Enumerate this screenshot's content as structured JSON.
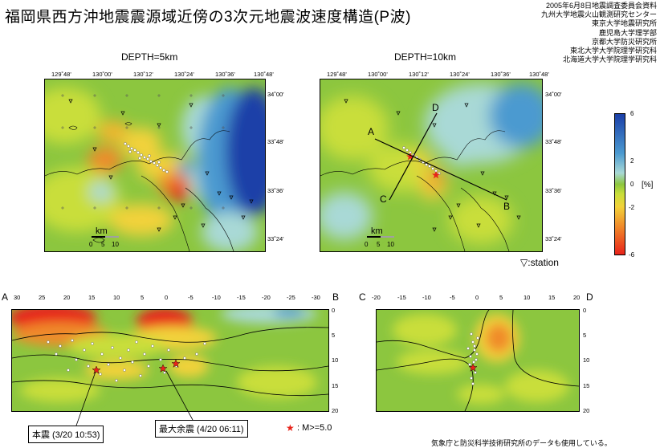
{
  "title": "福岡県西方沖地震震源域近傍の3次元地震波速度構造(P波)",
  "credits": [
    "2005年6月8日地震調査委員会資料",
    "九州大学地震火山観測研究センター",
    "東京大学地震研究所",
    "鹿児島大学理学部",
    "京都大学防災研究所",
    "東北大学大学院理学研究科",
    "北海道大学大学院理学研究科"
  ],
  "map_left": {
    "label": "DEPTH=5km"
  },
  "map_right": {
    "label": "DEPTH=10km"
  },
  "lon_ticks": [
    "129˚48'",
    "130˚00'",
    "130˚12'",
    "130˚24'",
    "130˚36'",
    "130˚48'"
  ],
  "lat_ticks": [
    "34˚00'",
    "33˚48'",
    "33˚36'",
    "33˚24'"
  ],
  "scale": {
    "unit": "km",
    "ticks": [
      "0",
      "5",
      "10"
    ]
  },
  "profile_labels": {
    "A": "A",
    "B": "B",
    "C": "C",
    "D": "D"
  },
  "station_legend": "▽:station",
  "colorbar": {
    "ticks": [
      "6",
      "2",
      "0",
      "-2",
      "-6"
    ],
    "unit": "[%]",
    "colors": [
      "#1a3fa8",
      "#4b9ad0",
      "#a9d9d6",
      "#8cc63f",
      "#f2d23a",
      "#f08a2a",
      "#e8231a"
    ]
  },
  "section_ab": {
    "left": "A",
    "right": "B",
    "x_ticks": [
      "30",
      "25",
      "20",
      "15",
      "10",
      "5",
      "0",
      "-5",
      "-10",
      "-15",
      "-20",
      "-25",
      "-30"
    ],
    "y_ticks": [
      "0",
      "5",
      "10",
      "15",
      "20"
    ]
  },
  "section_cd": {
    "left": "C",
    "right": "D",
    "x_ticks": [
      "-20",
      "-15",
      "-10",
      "-5",
      "0",
      "5",
      "10",
      "15",
      "20"
    ],
    "y_ticks": [
      "0",
      "5",
      "10",
      "15",
      "20"
    ]
  },
  "mainshock": "本震 (3/20 10:53)",
  "aftershock": "最大余震 (4/20 06:11)",
  "magnitude_legend": ": M>=5.0",
  "footer": "気象庁と防災科学技術研究所のデータも使用している。"
}
